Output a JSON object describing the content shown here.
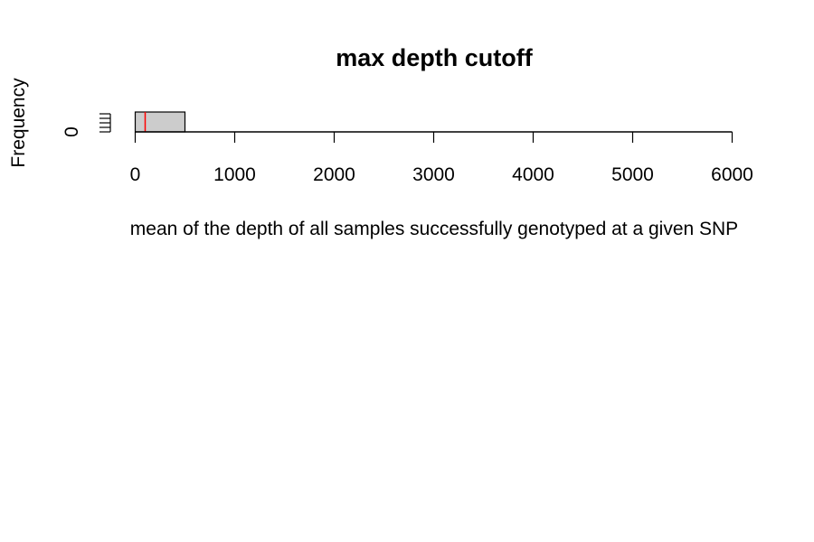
{
  "chart_data": {
    "type": "bar",
    "title": "max depth cutoff",
    "xlabel": "mean of the depth of all samples successfully genotyped at a given SNP",
    "ylabel": "Frequency",
    "xlim": [
      0,
      6000
    ],
    "x_ticks": [
      0,
      1000,
      2000,
      3000,
      4000,
      5000,
      6000
    ],
    "x_tick_labels": [
      "0",
      "1000",
      "2000",
      "3000",
      "4000",
      "5000",
      "6000"
    ],
    "y_ticks": [
      0
    ],
    "y_tick_labels": [
      "0"
    ],
    "bins": [
      {
        "start": 0,
        "end": 500,
        "count": 1
      }
    ],
    "cutoff_line": {
      "x": 100,
      "color": "#ff0000"
    },
    "bar_fill": "#cccccc",
    "grid": false
  }
}
